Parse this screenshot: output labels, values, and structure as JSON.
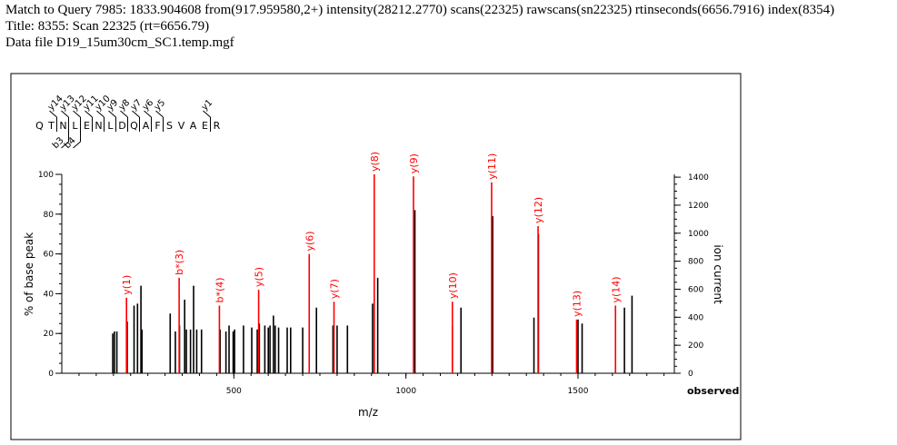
{
  "header": {
    "line1": "Match to Query 7985: 1833.904608 from(917.959580,2+) intensity(28212.2770) scans(22325) rawscans(sn22325) rtinseconds(6656.7916) index(8354)",
    "line2": "Title: 8355: Scan 22325 (rt=6656.79)",
    "line3": "Data file D19_15um30cm_SC1.temp.mgf"
  },
  "peptide": {
    "residues": [
      "Q",
      "T",
      "N",
      "L",
      "E",
      "N",
      "L",
      "D",
      "Q",
      "A",
      "F",
      "S",
      "V",
      "A",
      "E",
      "R"
    ],
    "y_ions": [
      {
        "label": "y14",
        "after": 2
      },
      {
        "label": "y13",
        "after": 3
      },
      {
        "label": "y12",
        "after": 4
      },
      {
        "label": "y11",
        "after": 5
      },
      {
        "label": "y10",
        "after": 6
      },
      {
        "label": "y9",
        "after": 7
      },
      {
        "label": "y8",
        "after": 8
      },
      {
        "label": "y7",
        "after": 9
      },
      {
        "label": "y6",
        "after": 10
      },
      {
        "label": "y5",
        "after": 11
      },
      {
        "label": "y1",
        "after": 15
      }
    ],
    "b_ions": [
      {
        "label": "b3",
        "after": 3
      },
      {
        "label": "b4",
        "after": 4
      }
    ]
  },
  "colors": {
    "matched": "#ff0000",
    "unmatched": "#000000"
  },
  "chart_data": {
    "type": "bar",
    "xlabel": "m/z",
    "ylabel": "% of base peak",
    "y2label": "ion current",
    "x_axis_note": "observed",
    "xlim": [
      0,
      1780
    ],
    "ylim": [
      0,
      100
    ],
    "y2lim": [
      0,
      1420
    ],
    "xticks": [
      500,
      1000,
      1500
    ],
    "yticks": [
      0,
      20,
      40,
      60,
      80,
      100
    ],
    "y2ticks": [
      0,
      200,
      400,
      600,
      800,
      1000,
      1200,
      1400
    ],
    "matched_peaks": [
      {
        "mz": 188,
        "pct": 38,
        "label": "y(1)"
      },
      {
        "mz": 341,
        "pct": 48,
        "label": "b*(3)"
      },
      {
        "mz": 458,
        "pct": 34,
        "label": "b*(4)"
      },
      {
        "mz": 572,
        "pct": 42,
        "label": "y(5)"
      },
      {
        "mz": 719,
        "pct": 60,
        "label": "y(6)"
      },
      {
        "mz": 791,
        "pct": 36,
        "label": "y(7)"
      },
      {
        "mz": 908,
        "pct": 100,
        "label": "y(8)"
      },
      {
        "mz": 1022,
        "pct": 99,
        "label": "y(9)"
      },
      {
        "mz": 1135,
        "pct": 36,
        "label": "y(10)"
      },
      {
        "mz": 1249,
        "pct": 96,
        "label": "y(11)"
      },
      {
        "mz": 1384,
        "pct": 74,
        "label": "y(12)"
      },
      {
        "mz": 1496,
        "pct": 27,
        "label": "y(13)"
      },
      {
        "mz": 1609,
        "pct": 34,
        "label": "y(14)"
      }
    ],
    "peaks": [
      [
        148,
        20
      ],
      [
        153,
        21
      ],
      [
        160,
        21
      ],
      [
        190,
        26
      ],
      [
        210,
        34
      ],
      [
        220,
        35
      ],
      [
        230,
        44
      ],
      [
        233,
        22
      ],
      [
        315,
        30
      ],
      [
        330,
        21
      ],
      [
        342,
        24
      ],
      [
        357,
        37
      ],
      [
        362,
        22
      ],
      [
        374,
        22
      ],
      [
        383,
        44
      ],
      [
        392,
        22
      ],
      [
        406,
        22
      ],
      [
        460,
        22
      ],
      [
        477,
        21
      ],
      [
        486,
        24
      ],
      [
        498,
        21
      ],
      [
        502,
        22
      ],
      [
        528,
        24
      ],
      [
        552,
        23
      ],
      [
        568,
        22
      ],
      [
        574,
        25
      ],
      [
        590,
        24
      ],
      [
        600,
        23
      ],
      [
        605,
        24
      ],
      [
        615,
        29
      ],
      [
        620,
        24
      ],
      [
        630,
        23
      ],
      [
        655,
        23
      ],
      [
        665,
        23
      ],
      [
        700,
        23
      ],
      [
        740,
        33
      ],
      [
        788,
        24
      ],
      [
        800,
        24
      ],
      [
        830,
        24
      ],
      [
        903,
        35
      ],
      [
        918,
        48
      ],
      [
        1026,
        82
      ],
      [
        1135,
        24
      ],
      [
        1160,
        33
      ],
      [
        1252,
        79
      ],
      [
        1372,
        28
      ],
      [
        1385,
        70
      ],
      [
        1500,
        27
      ],
      [
        1512,
        25
      ],
      [
        1635,
        33
      ],
      [
        1657,
        39
      ]
    ]
  }
}
